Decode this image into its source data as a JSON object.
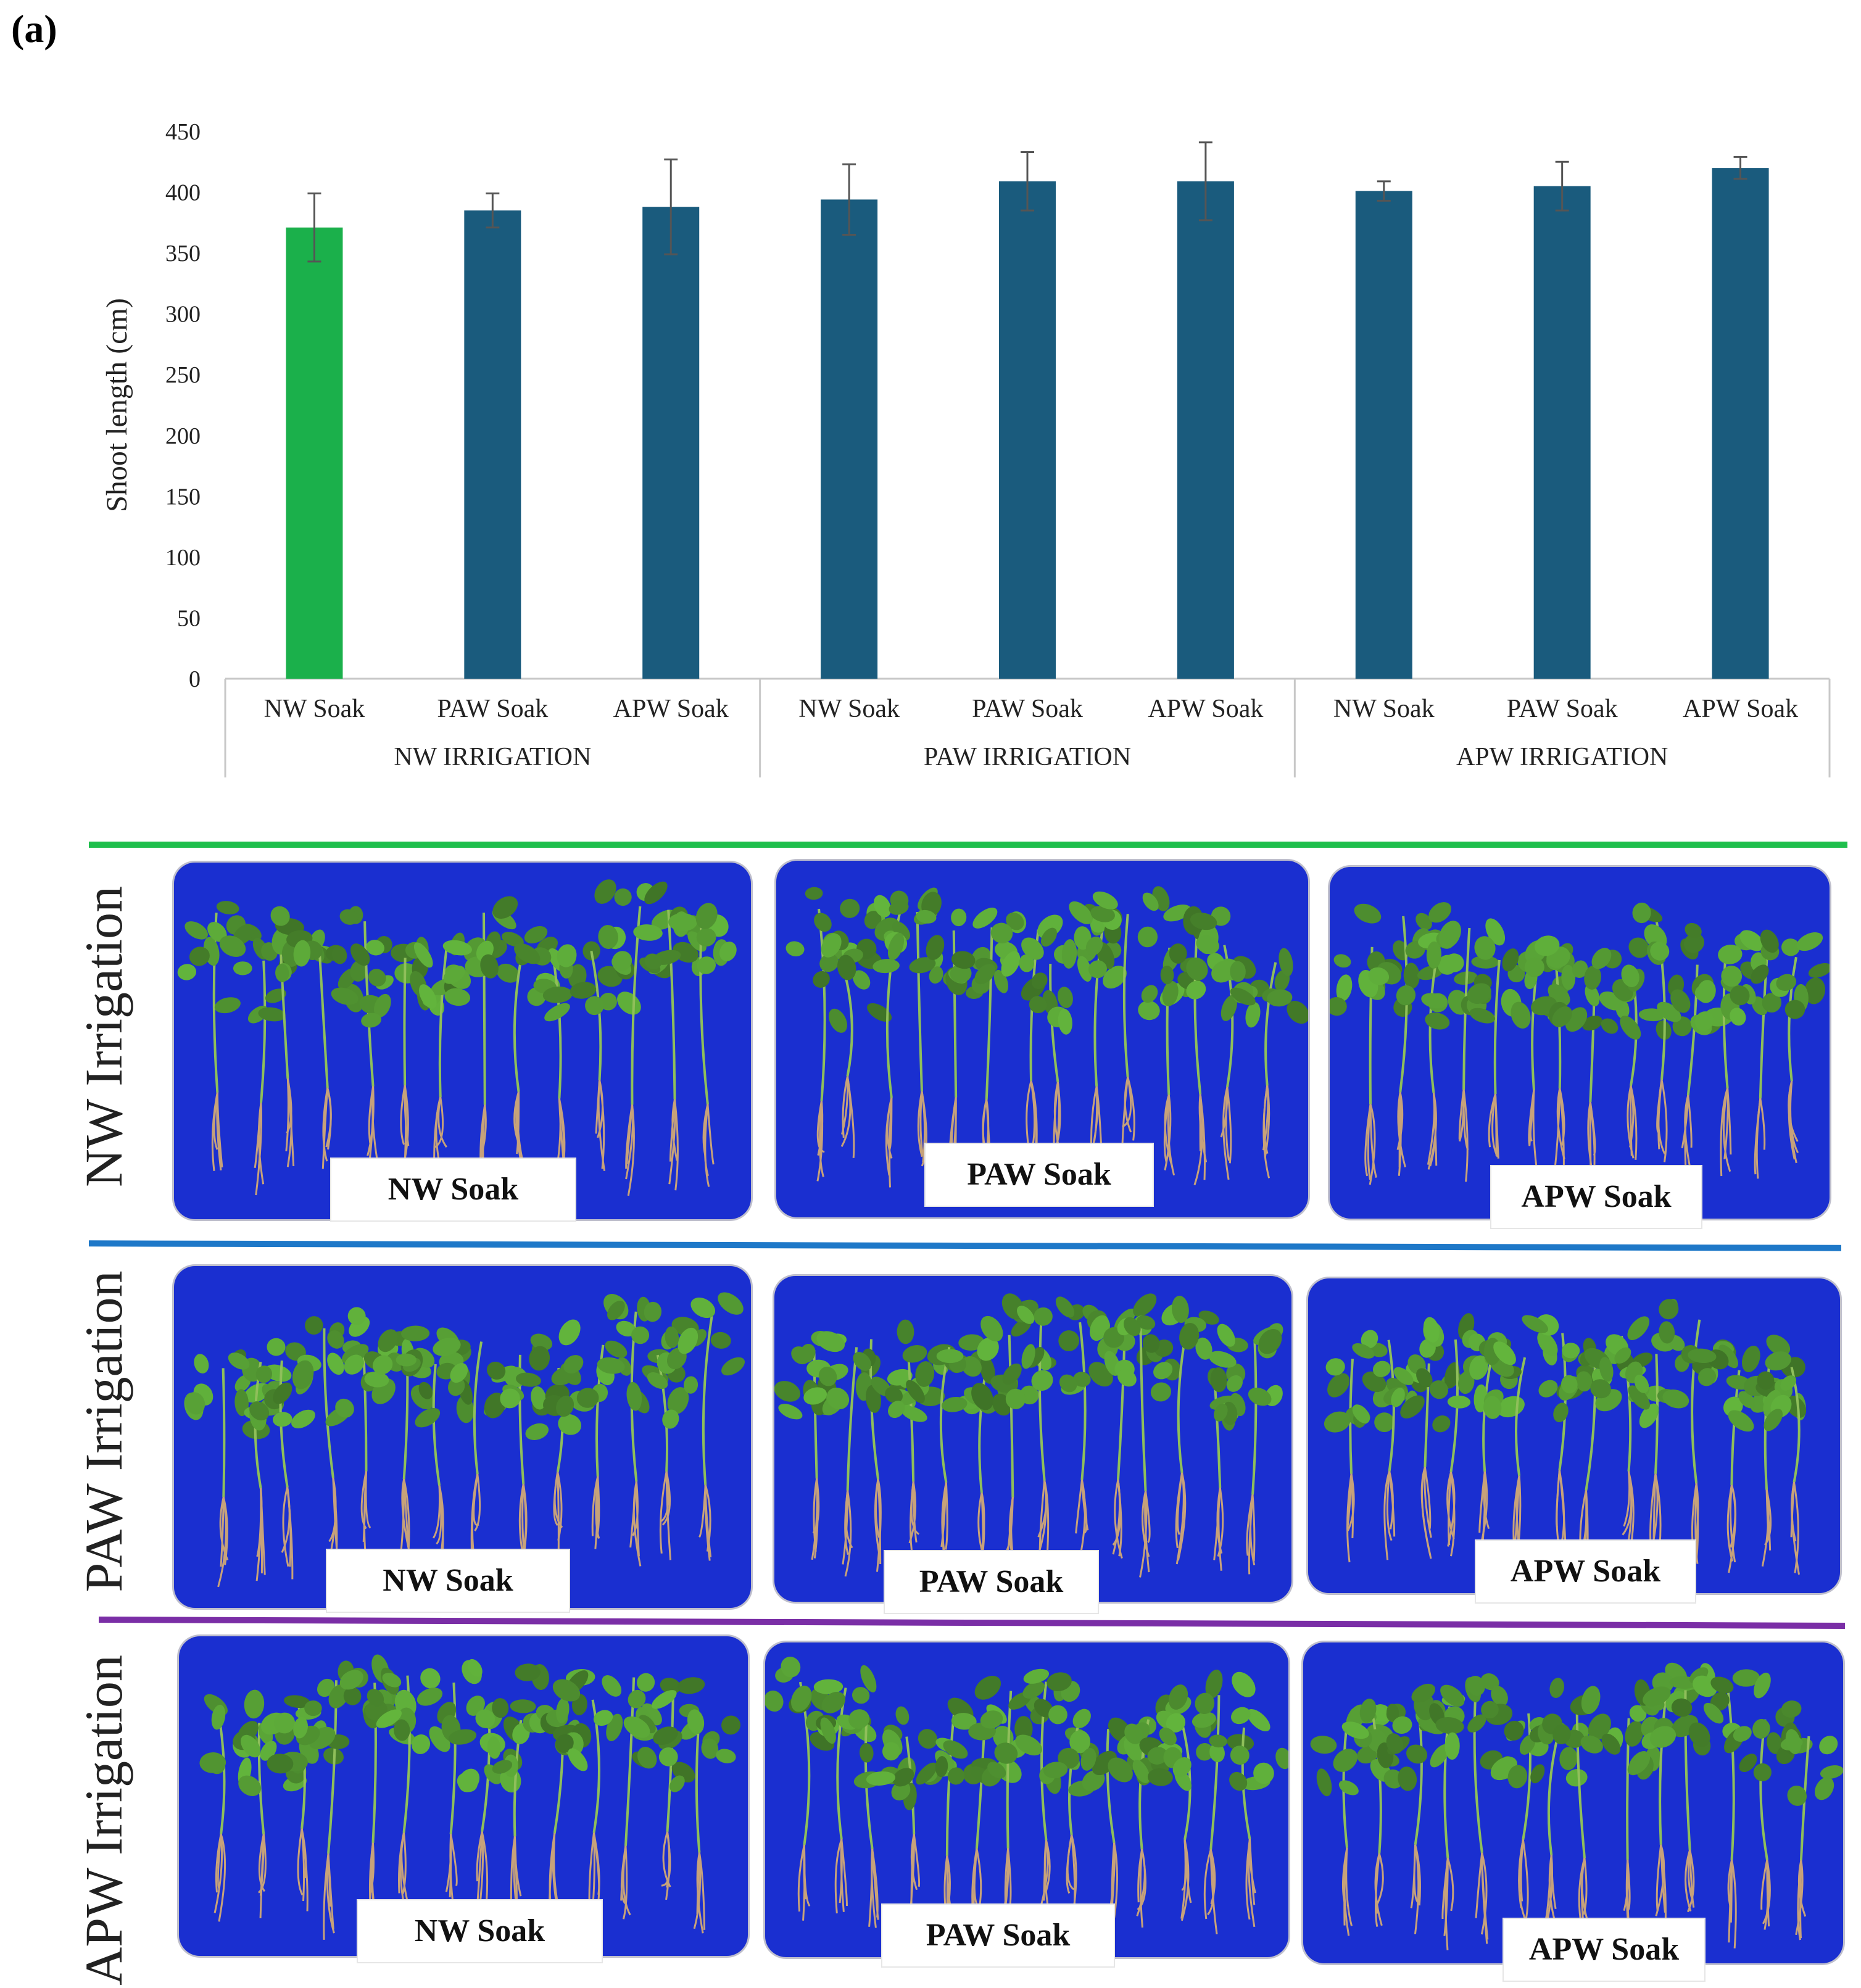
{
  "figure": {
    "panel_label": "(a)",
    "row_labels": [
      "NW Irrigation",
      "PAW Irrigation",
      "APW Irrigation"
    ],
    "soak_labels": [
      "NW Soak",
      "PAW Soak",
      "APW Soak"
    ],
    "colors": {
      "highlight_bar": "#1bb04b",
      "bar": "#1a5b7d",
      "error_bar": "#555555",
      "divider_nw": "#1fbf4c",
      "divider_paw": "#1e78c8",
      "divider_apw": "#7a2ea6",
      "board": "#1a2fd0",
      "leaf": "#6fa83a",
      "root": "#c7a27a"
    }
  },
  "chart_data": {
    "type": "bar",
    "title": "",
    "xlabel": "",
    "ylabel": "Shoot length (cm)",
    "ylim": [
      0,
      450
    ],
    "yticks": [
      0,
      50,
      100,
      150,
      200,
      250,
      300,
      350,
      400,
      450
    ],
    "grid": false,
    "groups": [
      {
        "name": "NW IRRIGATION",
        "categories": [
          "NW Soak",
          "PAW Soak",
          "APW Soak"
        ]
      },
      {
        "name": "PAW IRRIGATION",
        "categories": [
          "NW Soak",
          "PAW Soak",
          "APW Soak"
        ]
      },
      {
        "name": "APW IRRIGATION",
        "categories": [
          "NW Soak",
          "PAW Soak",
          "APW Soak"
        ]
      }
    ],
    "categories": [
      "NW Soak",
      "PAW Soak",
      "APW Soak",
      "NW Soak",
      "PAW Soak",
      "APW Soak",
      "NW Soak",
      "PAW Soak",
      "APW Soak"
    ],
    "values": [
      371,
      385,
      388,
      394,
      409,
      409,
      401,
      405,
      420
    ],
    "errors": [
      28,
      14,
      39,
      29,
      24,
      32,
      8,
      20,
      9
    ],
    "highlight_index": 0
  }
}
